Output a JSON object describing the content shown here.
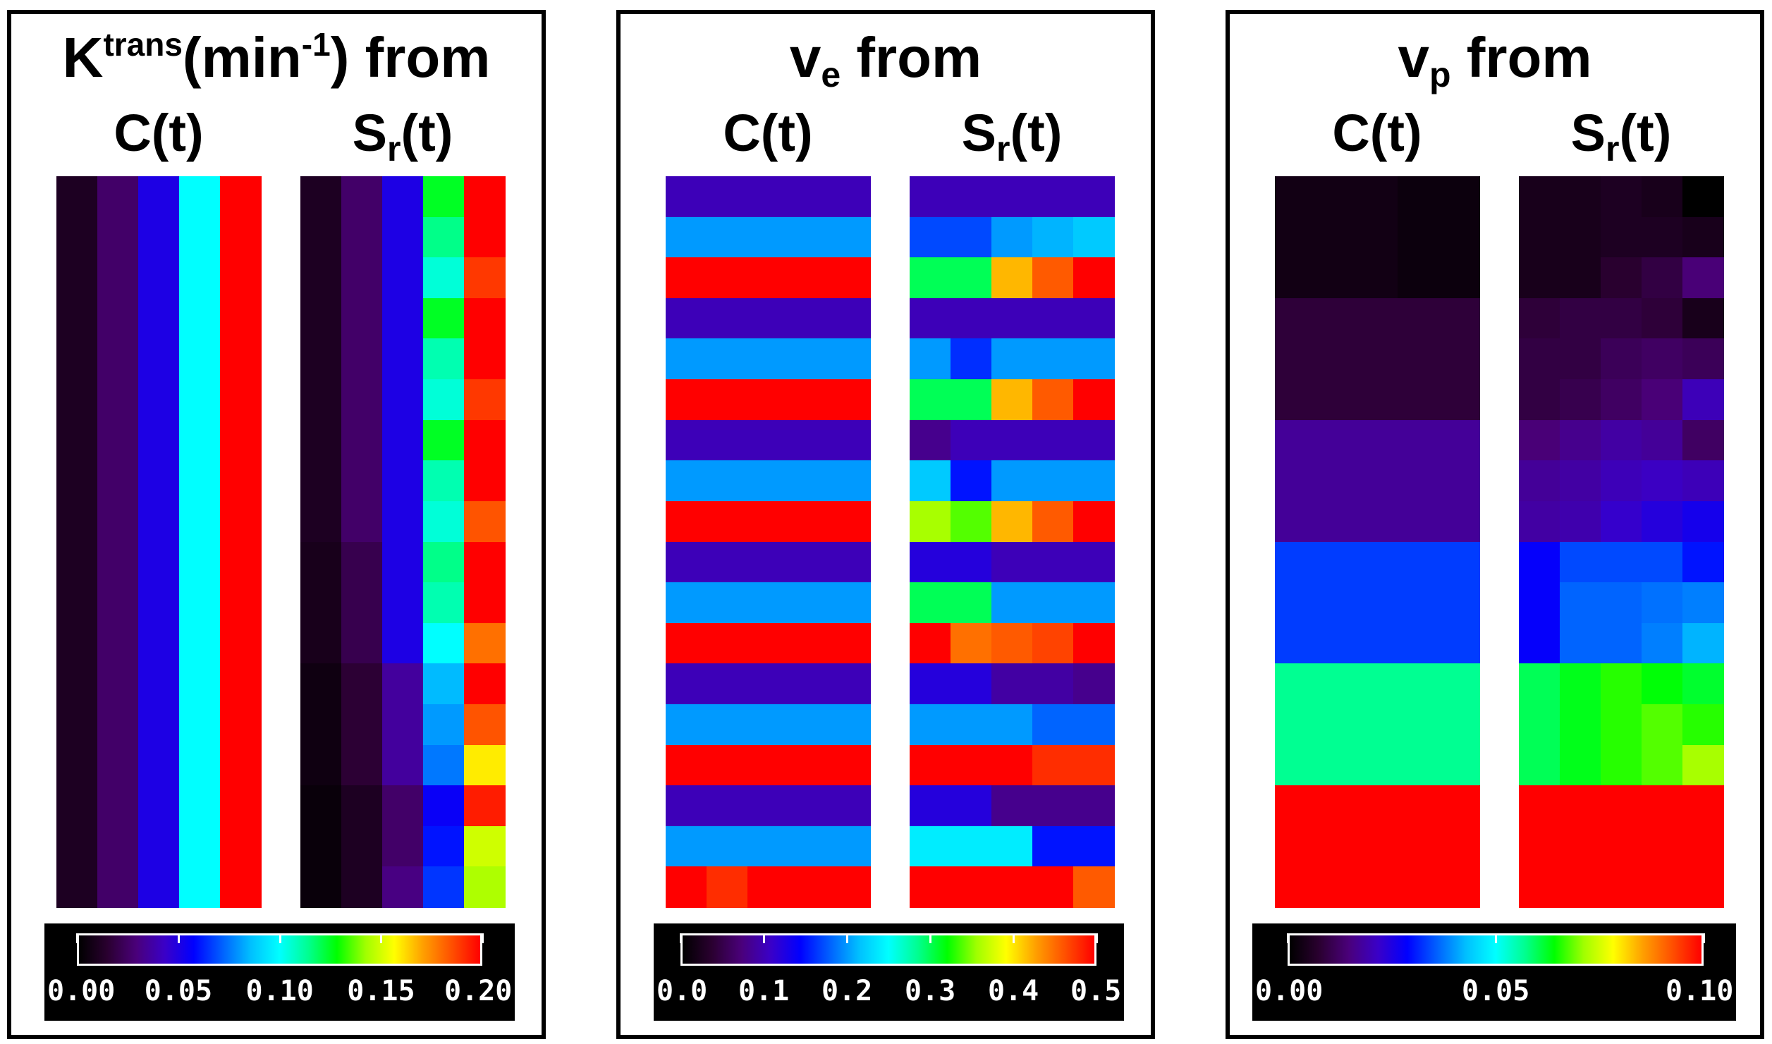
{
  "colormap": [
    "#000000",
    "#2a0030",
    "#4a007a",
    "#3a00c8",
    "#0000ff",
    "#0060ff",
    "#00c0ff",
    "#00ffff",
    "#00ff90",
    "#00ff00",
    "#a0ff00",
    "#ffff00",
    "#ffa000",
    "#ff5000",
    "#ff0000"
  ],
  "panels": [
    {
      "title_main": "K",
      "title_sup_1": "trans",
      "title_mid": "(min",
      "title_sup_2": "-1",
      "title_end": ") from",
      "left_label": "C(t)",
      "right_label_main": "S",
      "right_label_sub": "r",
      "right_label_end": "(t)",
      "colorbar_ticks": [
        "0.00",
        "0.05",
        "0.10",
        "0.15",
        "0.20"
      ],
      "cmin": 0,
      "cmax": 0.2
    },
    {
      "title_main": "v",
      "title_sub": "e",
      "title_end": " from",
      "left_label": "C(t)",
      "right_label_main": "S",
      "right_label_sub": "r",
      "right_label_end": "(t)",
      "colorbar_ticks": [
        "0.0",
        "0.1",
        "0.2",
        "0.3",
        "0.4",
        "0.5"
      ],
      "cmin": 0,
      "cmax": 0.5
    },
    {
      "title_main": "v",
      "title_sub": "p",
      "title_end": " from",
      "left_label": "C(t)",
      "right_label_main": "S",
      "right_label_sub": "r",
      "right_label_end": "(t)",
      "colorbar_ticks": [
        "0.00",
        "0.05",
        "0.10"
      ],
      "cmin": 0,
      "cmax": 0.1
    }
  ],
  "chart_data": [
    {
      "type": "heatmap",
      "title": "Ktrans(min-1) from",
      "cmin": 0,
      "cmax": 0.2,
      "colorbar_ticks": [
        0.0,
        0.05,
        0.1,
        0.15,
        0.2
      ],
      "maps": [
        {
          "name": "C(t)",
          "rows": [
            [
              0.01,
              0.025,
              0.05,
              0.1,
              0.2
            ],
            [
              0.01,
              0.025,
              0.05,
              0.1,
              0.2
            ],
            [
              0.01,
              0.025,
              0.05,
              0.1,
              0.2
            ],
            [
              0.01,
              0.025,
              0.05,
              0.1,
              0.2
            ],
            [
              0.01,
              0.025,
              0.05,
              0.1,
              0.2
            ],
            [
              0.01,
              0.025,
              0.05,
              0.1,
              0.2
            ],
            [
              0.01,
              0.025,
              0.05,
              0.1,
              0.2
            ],
            [
              0.01,
              0.025,
              0.05,
              0.1,
              0.2
            ],
            [
              0.01,
              0.025,
              0.05,
              0.1,
              0.2
            ],
            [
              0.01,
              0.025,
              0.05,
              0.1,
              0.2
            ],
            [
              0.01,
              0.025,
              0.05,
              0.1,
              0.2
            ],
            [
              0.01,
              0.025,
              0.05,
              0.1,
              0.2
            ],
            [
              0.01,
              0.025,
              0.05,
              0.1,
              0.2
            ],
            [
              0.01,
              0.025,
              0.05,
              0.1,
              0.2
            ],
            [
              0.01,
              0.025,
              0.05,
              0.1,
              0.2
            ],
            [
              0.01,
              0.025,
              0.05,
              0.1,
              0.2
            ],
            [
              0.01,
              0.025,
              0.05,
              0.1,
              0.2
            ],
            [
              0.01,
              0.025,
              0.05,
              0.1,
              0.2
            ]
          ]
        },
        {
          "name": "Sr(t)",
          "rows": [
            [
              0.01,
              0.025,
              0.05,
              0.125,
              0.2
            ],
            [
              0.01,
              0.025,
              0.05,
              0.115,
              0.2
            ],
            [
              0.01,
              0.025,
              0.05,
              0.105,
              0.19
            ],
            [
              0.01,
              0.025,
              0.05,
              0.125,
              0.2
            ],
            [
              0.01,
              0.025,
              0.05,
              0.11,
              0.2
            ],
            [
              0.01,
              0.025,
              0.05,
              0.105,
              0.19
            ],
            [
              0.01,
              0.025,
              0.05,
              0.125,
              0.2
            ],
            [
              0.01,
              0.025,
              0.05,
              0.11,
              0.2
            ],
            [
              0.01,
              0.025,
              0.05,
              0.105,
              0.185
            ],
            [
              0.008,
              0.02,
              0.05,
              0.115,
              0.2
            ],
            [
              0.008,
              0.02,
              0.05,
              0.11,
              0.2
            ],
            [
              0.008,
              0.02,
              0.05,
              0.1,
              0.18
            ],
            [
              0.005,
              0.015,
              0.035,
              0.085,
              0.2
            ],
            [
              0.005,
              0.015,
              0.035,
              0.08,
              0.185
            ],
            [
              0.005,
              0.015,
              0.035,
              0.075,
              0.16
            ],
            [
              0.003,
              0.01,
              0.025,
              0.055,
              0.195
            ],
            [
              0.003,
              0.01,
              0.025,
              0.06,
              0.15
            ],
            [
              0.003,
              0.01,
              0.03,
              0.065,
              0.145
            ]
          ]
        }
      ]
    },
    {
      "type": "heatmap",
      "title": "ve from",
      "cmin": 0,
      "cmax": 0.5,
      "colorbar_ticks": [
        0.0,
        0.1,
        0.2,
        0.3,
        0.4,
        0.5
      ],
      "maps": [
        {
          "name": "C(t)",
          "rows": [
            [
              0.1,
              0.1,
              0.1,
              0.1,
              0.1
            ],
            [
              0.2,
              0.2,
              0.2,
              0.2,
              0.2
            ],
            [
              0.5,
              0.5,
              0.5,
              0.5,
              0.5
            ],
            [
              0.1,
              0.1,
              0.1,
              0.1,
              0.1
            ],
            [
              0.2,
              0.2,
              0.2,
              0.2,
              0.2
            ],
            [
              0.5,
              0.5,
              0.5,
              0.5,
              0.5
            ],
            [
              0.1,
              0.1,
              0.1,
              0.1,
              0.1
            ],
            [
              0.2,
              0.2,
              0.2,
              0.2,
              0.2
            ],
            [
              0.5,
              0.5,
              0.5,
              0.5,
              0.5
            ],
            [
              0.1,
              0.1,
              0.1,
              0.1,
              0.1
            ],
            [
              0.2,
              0.2,
              0.2,
              0.2,
              0.2
            ],
            [
              0.5,
              0.5,
              0.5,
              0.5,
              0.5
            ],
            [
              0.1,
              0.1,
              0.1,
              0.1,
              0.1
            ],
            [
              0.2,
              0.2,
              0.2,
              0.2,
              0.2
            ],
            [
              0.5,
              0.5,
              0.5,
              0.5,
              0.5
            ],
            [
              0.1,
              0.1,
              0.1,
              0.1,
              0.1
            ],
            [
              0.2,
              0.2,
              0.2,
              0.2,
              0.2
            ],
            [
              0.5,
              0.48,
              0.5,
              0.5,
              0.5
            ]
          ]
        },
        {
          "name": "Sr(t)",
          "rows": [
            [
              0.1,
              0.1,
              0.1,
              0.1,
              0.1
            ],
            [
              0.17,
              0.17,
              0.2,
              0.21,
              0.22
            ],
            [
              0.3,
              0.3,
              0.42,
              0.46,
              0.5
            ],
            [
              0.1,
              0.1,
              0.1,
              0.1,
              0.1
            ],
            [
              0.2,
              0.16,
              0.2,
              0.2,
              0.2
            ],
            [
              0.3,
              0.3,
              0.42,
              0.46,
              0.5
            ],
            [
              0.08,
              0.1,
              0.1,
              0.1,
              0.1
            ],
            [
              0.22,
              0.15,
              0.2,
              0.2,
              0.2
            ],
            [
              0.36,
              0.34,
              0.42,
              0.46,
              0.5
            ],
            [
              0.12,
              0.12,
              0.1,
              0.1,
              0.1
            ],
            [
              0.3,
              0.3,
              0.2,
              0.2,
              0.2
            ],
            [
              0.5,
              0.45,
              0.46,
              0.47,
              0.5
            ],
            [
              0.12,
              0.12,
              0.09,
              0.09,
              0.08
            ],
            [
              0.2,
              0.2,
              0.2,
              0.18,
              0.18
            ],
            [
              0.5,
              0.5,
              0.5,
              0.48,
              0.48
            ],
            [
              0.12,
              0.12,
              0.08,
              0.08,
              0.08
            ],
            [
              0.24,
              0.24,
              0.24,
              0.15,
              0.15
            ],
            [
              0.5,
              0.5,
              0.5,
              0.5,
              0.46
            ]
          ]
        }
      ]
    },
    {
      "type": "heatmap",
      "title": "vp from",
      "cmin": 0,
      "cmax": 0.1,
      "colorbar_ticks": [
        0.0,
        0.05,
        0.1
      ],
      "maps": [
        {
          "name": "C(t)",
          "rows": [
            [
              0.003,
              0.003,
              0.003,
              0.002,
              0.002
            ],
            [
              0.003,
              0.003,
              0.003,
              0.002,
              0.002
            ],
            [
              0.003,
              0.003,
              0.003,
              0.002,
              0.002
            ],
            [
              0.008,
              0.008,
              0.008,
              0.008,
              0.008
            ],
            [
              0.008,
              0.008,
              0.008,
              0.008,
              0.008
            ],
            [
              0.008,
              0.008,
              0.008,
              0.008,
              0.008
            ],
            [
              0.017,
              0.017,
              0.017,
              0.017,
              0.017
            ],
            [
              0.017,
              0.017,
              0.017,
              0.017,
              0.017
            ],
            [
              0.017,
              0.017,
              0.017,
              0.017,
              0.017
            ],
            [
              0.033,
              0.033,
              0.033,
              0.033,
              0.033
            ],
            [
              0.033,
              0.033,
              0.033,
              0.033,
              0.033
            ],
            [
              0.033,
              0.033,
              0.033,
              0.033,
              0.033
            ],
            [
              0.057,
              0.057,
              0.057,
              0.057,
              0.057
            ],
            [
              0.057,
              0.057,
              0.057,
              0.057,
              0.057
            ],
            [
              0.057,
              0.057,
              0.057,
              0.057,
              0.057
            ],
            [
              0.1,
              0.1,
              0.1,
              0.1,
              0.1
            ],
            [
              0.1,
              0.1,
              0.1,
              0.1,
              0.1
            ],
            [
              0.1,
              0.1,
              0.1,
              0.1,
              0.1
            ]
          ]
        },
        {
          "name": "Sr(t)",
          "rows": [
            [
              0.004,
              0.004,
              0.005,
              0.004,
              0.0
            ],
            [
              0.004,
              0.004,
              0.005,
              0.005,
              0.004
            ],
            [
              0.004,
              0.004,
              0.007,
              0.009,
              0.014
            ],
            [
              0.008,
              0.009,
              0.009,
              0.008,
              0.004
            ],
            [
              0.009,
              0.009,
              0.011,
              0.012,
              0.011
            ],
            [
              0.009,
              0.01,
              0.012,
              0.014,
              0.02
            ],
            [
              0.014,
              0.016,
              0.018,
              0.017,
              0.012
            ],
            [
              0.017,
              0.018,
              0.02,
              0.021,
              0.02
            ],
            [
              0.018,
              0.019,
              0.022,
              0.024,
              0.026
            ],
            [
              0.028,
              0.034,
              0.034,
              0.034,
              0.03
            ],
            [
              0.028,
              0.036,
              0.036,
              0.037,
              0.038
            ],
            [
              0.028,
              0.036,
              0.036,
              0.038,
              0.042
            ],
            [
              0.06,
              0.063,
              0.066,
              0.064,
              0.062
            ],
            [
              0.06,
              0.063,
              0.066,
              0.068,
              0.066
            ],
            [
              0.06,
              0.063,
              0.066,
              0.068,
              0.072
            ],
            [
              0.1,
              0.1,
              0.1,
              0.1,
              0.1
            ],
            [
              0.1,
              0.1,
              0.1,
              0.1,
              0.1
            ],
            [
              0.1,
              0.1,
              0.1,
              0.1,
              0.1
            ]
          ]
        }
      ]
    }
  ]
}
